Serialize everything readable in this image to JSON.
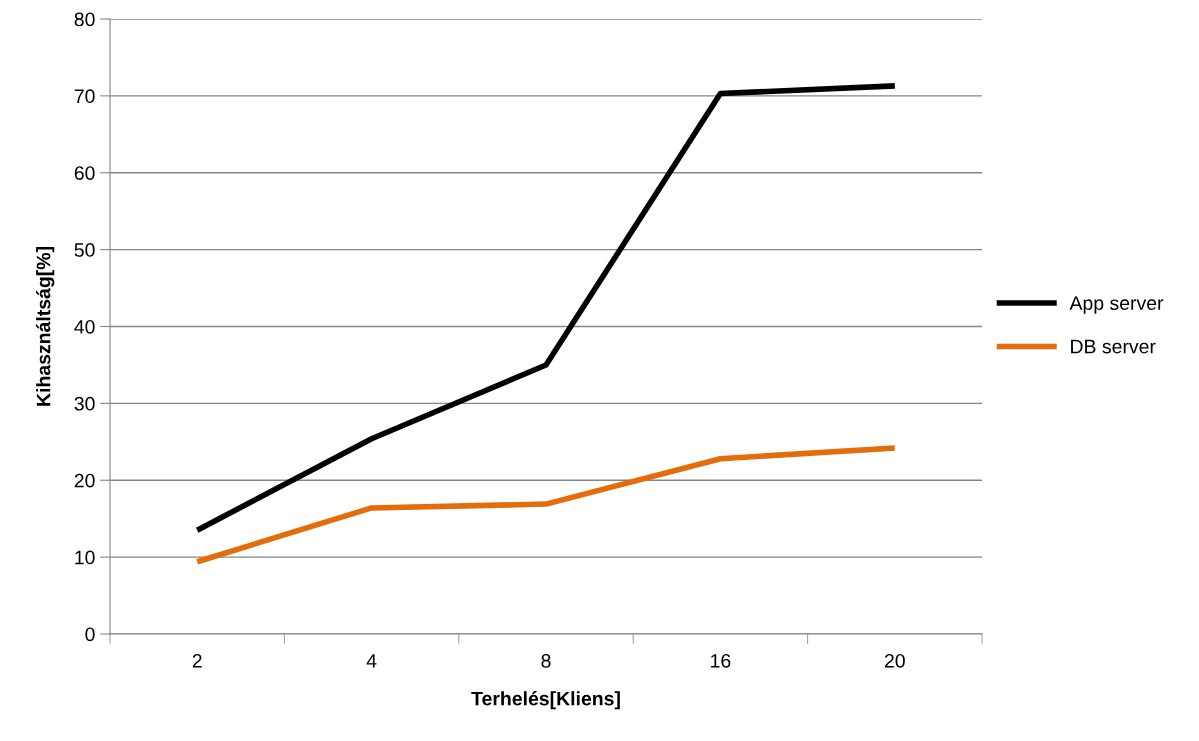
{
  "chart_data": {
    "type": "line",
    "xlabel": "Terhelés[Kliens]",
    "ylabel": "Kihasználtság[%]",
    "categories": [
      "2",
      "4",
      "8",
      "16",
      "20"
    ],
    "series": [
      {
        "name": "App server",
        "color": "#000000",
        "values": [
          13.5,
          25.4,
          35.0,
          70.3,
          71.3
        ]
      },
      {
        "name": "DB server",
        "color": "#e46c0a",
        "values": [
          9.4,
          16.4,
          16.9,
          22.8,
          24.2
        ]
      }
    ],
    "ylim": [
      0,
      80
    ],
    "yticks": [
      0,
      10,
      20,
      30,
      40,
      50,
      60,
      70,
      80
    ],
    "grid": "y",
    "legend": "right",
    "marker": "none",
    "line_style": "solid"
  }
}
